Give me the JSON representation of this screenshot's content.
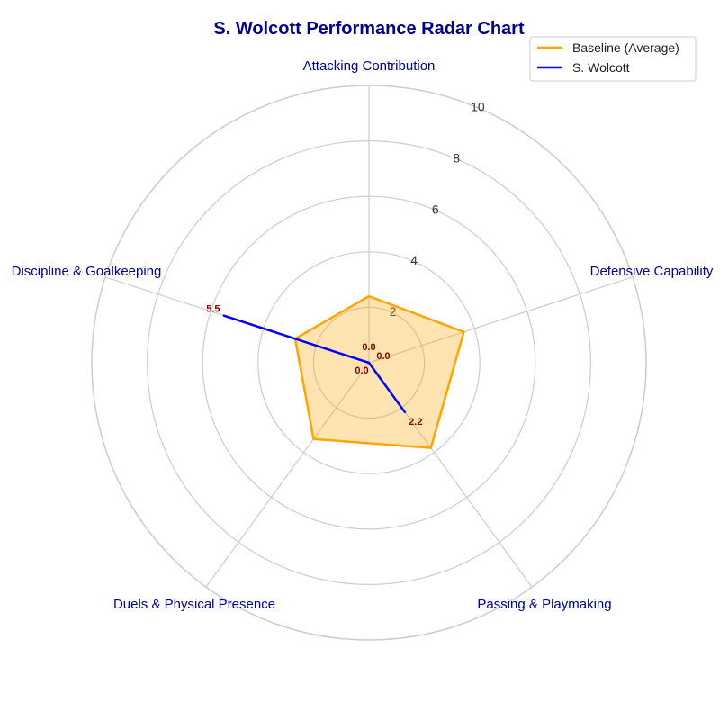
{
  "chart_data": {
    "type": "radar",
    "title": "S. Wolcott Performance Radar Chart",
    "categories": [
      "Attacking Contribution",
      "Defensive Capability",
      "Passing & Playmaking",
      "Duels & Physical Presence",
      "Discipline & Goalkeeping"
    ],
    "rlim": [
      0,
      10
    ],
    "rticks": [
      2,
      4,
      6,
      8,
      10
    ],
    "series": [
      {
        "name": "Baseline (Average)",
        "values": [
          2.4,
          3.6,
          3.8,
          3.4,
          2.8
        ],
        "color": "#FFA500",
        "fill": true
      },
      {
        "name": "S. Wolcott",
        "values": [
          0.0,
          0.0,
          2.2,
          0.0,
          5.5
        ],
        "color": "#0000FF",
        "fill": false
      }
    ],
    "data_labels": [
      "0.0",
      "0.0",
      "2.2",
      "0.0",
      "5.5"
    ],
    "legend_position": "top-right",
    "grid": true,
    "title_color": "#00008B",
    "label_color": "#00008B",
    "data_label_color": "#8B0000"
  }
}
